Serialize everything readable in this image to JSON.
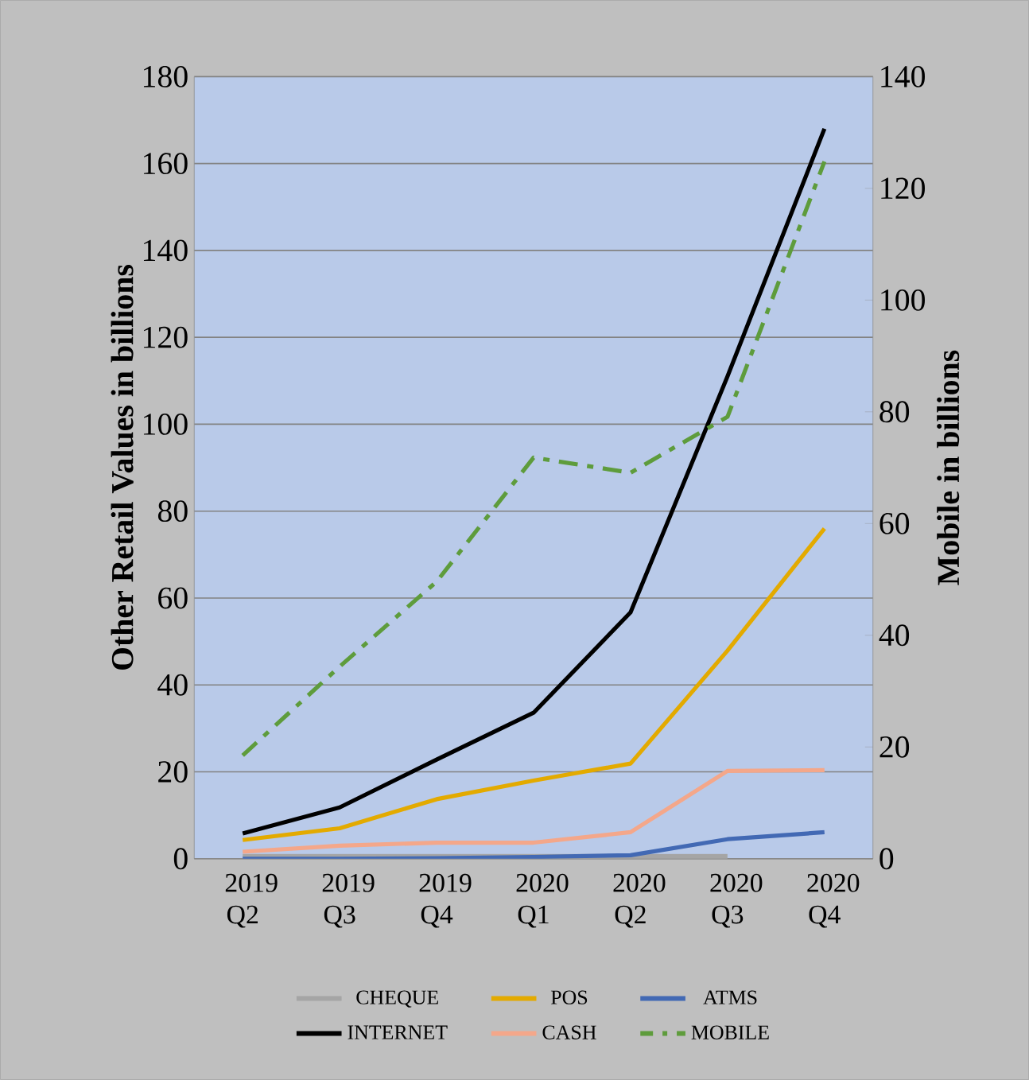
{
  "chart_data": {
    "type": "line",
    "categories": [
      "2019 Q2",
      "2019 Q3",
      "2019 Q4",
      "2020 Q1",
      "2020 Q2",
      "2020 Q3",
      "2020 Q4"
    ],
    "ylabel": "Other Retail Values in billions",
    "y2label": "Mobile in billions",
    "ylim": [
      0,
      180
    ],
    "yticks": [
      0,
      20,
      40,
      60,
      80,
      100,
      120,
      140,
      160,
      180
    ],
    "y2lim": [
      0,
      140
    ],
    "y2ticks": [
      0,
      20,
      40,
      60,
      80,
      100,
      120,
      140
    ],
    "grid": "y",
    "legend": "bottom",
    "marker": "none",
    "series": [
      {
        "name": "CHEQUE",
        "color": "#a5a5a5",
        "values": [
          0,
          0,
          0,
          0,
          0,
          0,
          null
        ]
      },
      {
        "name": "POS",
        "color": "#e3aa00",
        "values": [
          4.3,
          7.0,
          13.7,
          18.0,
          21.9,
          47.9,
          76.0
        ]
      },
      {
        "name": "ATMS",
        "color": "#4269b4",
        "values": [
          0,
          0,
          0.1,
          0.4,
          0.8,
          4.5,
          6.1
        ]
      },
      {
        "name": "INTERNET",
        "color": "#000000",
        "values": [
          5.8,
          11.8,
          22.8,
          33.6,
          56.7,
          111,
          168
        ]
      },
      {
        "name": "CASH",
        "color": "#f4a78a",
        "values": [
          1.6,
          3.0,
          3.7,
          3.7,
          6.1,
          20.2,
          20.4
        ]
      },
      {
        "name": "MOBILE",
        "color": "#5e9c3c",
        "axis": "y2",
        "line_style": "dashed",
        "values": [
          18.5,
          34.4,
          49.6,
          71.8,
          69.1,
          79.1,
          124.8
        ]
      }
    ]
  }
}
